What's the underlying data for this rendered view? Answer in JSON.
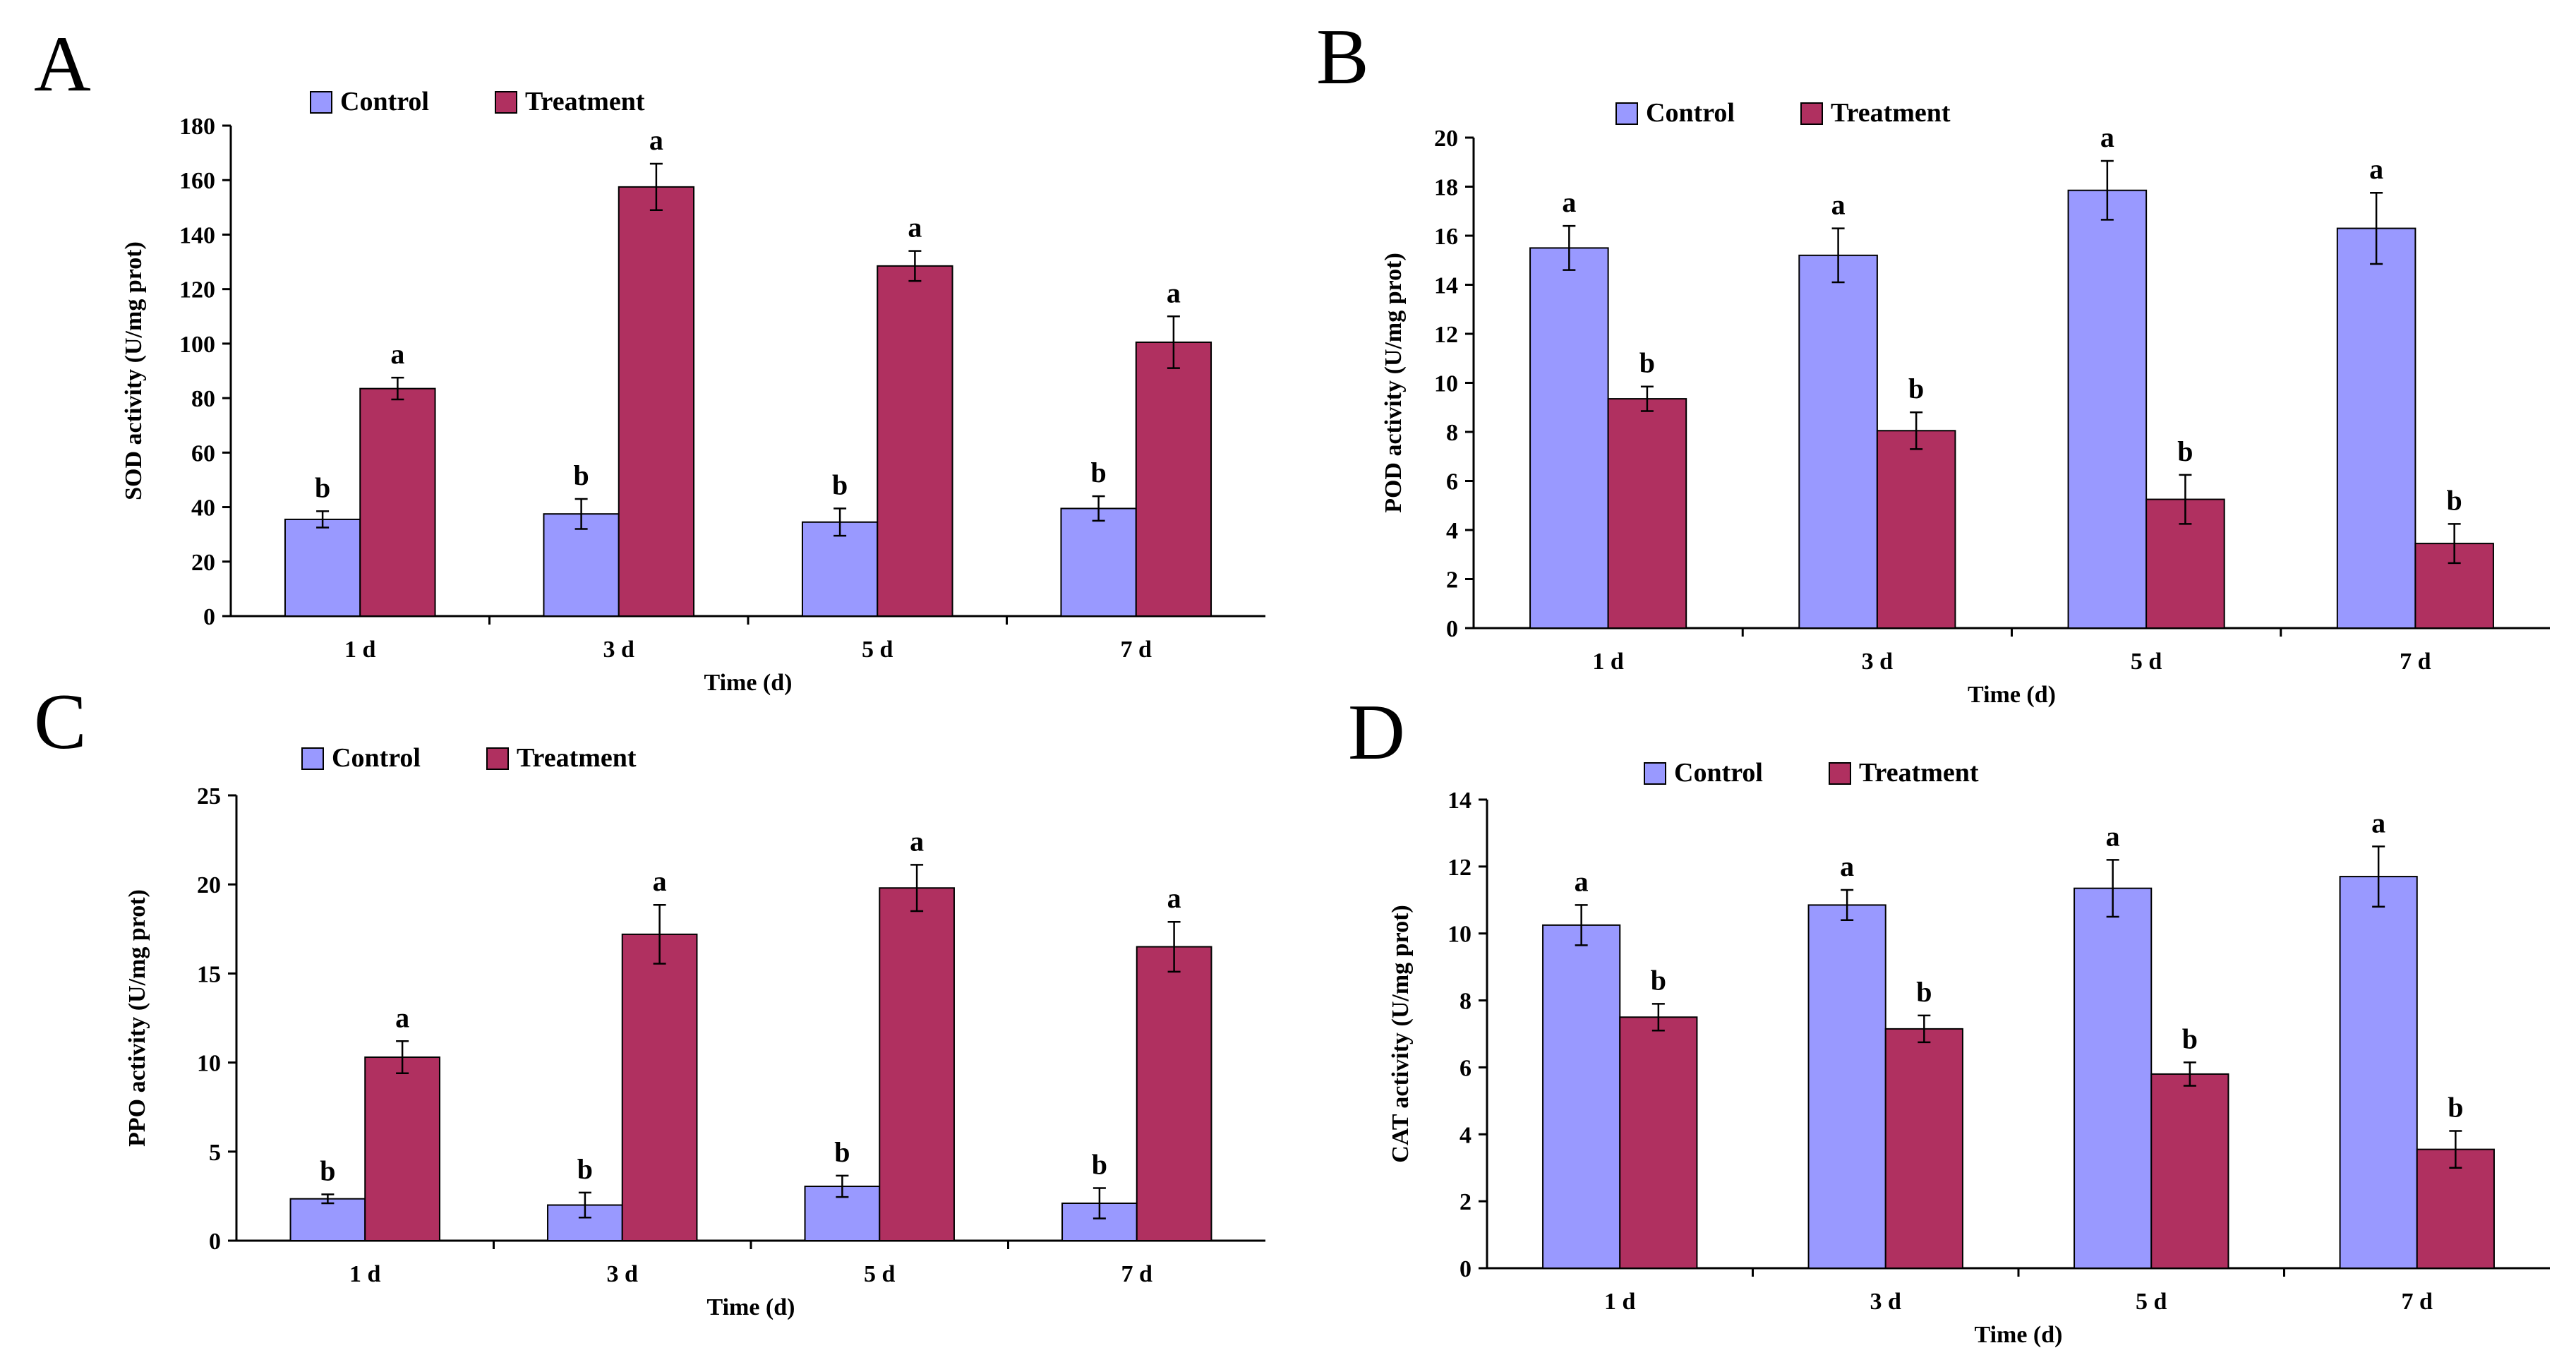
{
  "colors": {
    "control": "#9999FF",
    "treatment": "#B03060"
  },
  "chart_data": [
    {
      "type": "bar",
      "panel": "A",
      "title": "",
      "xlabel": "Time (d)",
      "ylabel": "SOD activity (U/mg prot)",
      "categories": [
        "1 d",
        "3 d",
        "5 d",
        "7 d"
      ],
      "ylim": [
        0,
        180
      ],
      "yticks": [
        0,
        20,
        40,
        60,
        80,
        100,
        120,
        140,
        160,
        180
      ],
      "legend": [
        "Control",
        "Treatment"
      ],
      "legend_position": "top-left",
      "series": [
        {
          "name": "Control",
          "values": [
            35.5,
            37.5,
            34.5,
            39.5
          ],
          "errors": [
            3,
            5.5,
            5,
            4.5
          ],
          "labels": [
            "b",
            "b",
            "b",
            "b"
          ]
        },
        {
          "name": "Treatment",
          "values": [
            83.5,
            157.5,
            128.5,
            100.5
          ],
          "errors": [
            4,
            8.5,
            5.5,
            9.5
          ],
          "labels": [
            "a",
            "a",
            "a",
            "a"
          ]
        }
      ]
    },
    {
      "type": "bar",
      "panel": "B",
      "title": "",
      "xlabel": "Time (d)",
      "ylabel": "POD activity (U/mg prot)",
      "categories": [
        "1 d",
        "3 d",
        "5 d",
        "7 d"
      ],
      "ylim": [
        0,
        20
      ],
      "yticks": [
        0,
        2,
        4,
        6,
        8,
        10,
        12,
        14,
        16,
        18,
        20
      ],
      "legend": [
        "Control",
        "Treatment"
      ],
      "legend_position": "top-left",
      "series": [
        {
          "name": "Control",
          "values": [
            15.5,
            15.2,
            17.85,
            16.3
          ],
          "errors": [
            0.9,
            1.1,
            1.2,
            1.45
          ],
          "labels": [
            "a",
            "a",
            "a",
            "a"
          ]
        },
        {
          "name": "Treatment",
          "values": [
            9.35,
            8.05,
            5.25,
            3.45
          ],
          "errors": [
            0.5,
            0.75,
            1.0,
            0.8
          ],
          "labels": [
            "b",
            "b",
            "b",
            "b"
          ]
        }
      ]
    },
    {
      "type": "bar",
      "panel": "C",
      "title": "",
      "xlabel": "Time (d)",
      "ylabel": "PPO activity (U/mg prot)",
      "categories": [
        "1 d",
        "3 d",
        "5 d",
        "7 d"
      ],
      "ylim": [
        0,
        25
      ],
      "yticks": [
        0,
        5,
        10,
        15,
        20,
        25
      ],
      "legend": [
        "Control",
        "Treatment"
      ],
      "legend_position": "top-left",
      "series": [
        {
          "name": "Control",
          "values": [
            2.35,
            2.0,
            3.05,
            2.1
          ],
          "errors": [
            0.25,
            0.7,
            0.6,
            0.85
          ],
          "labels": [
            "b",
            "b",
            "b",
            "b"
          ]
        },
        {
          "name": "Treatment",
          "values": [
            10.3,
            17.2,
            19.8,
            16.5
          ],
          "errors": [
            0.9,
            1.65,
            1.3,
            1.4
          ],
          "labels": [
            "a",
            "a",
            "a",
            "a"
          ]
        }
      ]
    },
    {
      "type": "bar",
      "panel": "D",
      "title": "",
      "xlabel": "Time (d)",
      "ylabel": "CAT activity (U/mg prot)",
      "categories": [
        "1 d",
        "3 d",
        "5 d",
        "7 d"
      ],
      "ylim": [
        0,
        14
      ],
      "yticks": [
        0,
        2,
        4,
        6,
        8,
        10,
        12,
        14
      ],
      "legend": [
        "Control",
        "Treatment"
      ],
      "legend_position": "top-left",
      "series": [
        {
          "name": "Control",
          "values": [
            10.25,
            10.85,
            11.35,
            11.7
          ],
          "errors": [
            0.6,
            0.45,
            0.85,
            0.9
          ],
          "labels": [
            "a",
            "a",
            "a",
            "a"
          ]
        },
        {
          "name": "Treatment",
          "values": [
            7.5,
            7.15,
            5.8,
            3.55
          ],
          "errors": [
            0.4,
            0.4,
            0.35,
            0.55
          ],
          "labels": [
            "b",
            "b",
            "b",
            "b"
          ]
        }
      ]
    }
  ]
}
